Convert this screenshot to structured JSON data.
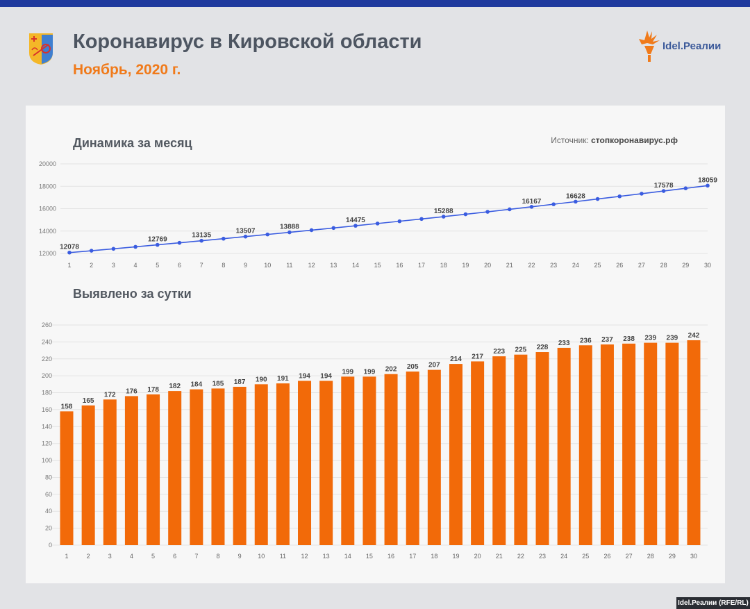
{
  "header": {
    "title": "Коронавирус в Кировской области",
    "subtitle": "Ноябрь, 2020 г.",
    "brand": "Idel.Реалии"
  },
  "source": {
    "label": "Источник:",
    "value": "стопкоронавирус.рф"
  },
  "footer": {
    "credit": "Idel.Реалии (RFE/RL)"
  },
  "colors": {
    "topbar": "#1f3a9e",
    "accent": "#f07a1a",
    "line": "#3a5ce0",
    "bar": "#f26a09",
    "title": "#4d5561"
  },
  "chart_data": [
    {
      "type": "line",
      "title": "Динамика за месяц",
      "x": [
        1,
        2,
        3,
        4,
        5,
        6,
        7,
        8,
        9,
        10,
        11,
        12,
        13,
        14,
        15,
        16,
        17,
        18,
        19,
        20,
        21,
        22,
        23,
        24,
        25,
        26,
        27,
        28,
        29,
        30
      ],
      "values": [
        12078,
        12243,
        12415,
        12591,
        12769,
        12951,
        13135,
        13320,
        13507,
        13697,
        13888,
        14082,
        14276,
        14475,
        14674,
        14876,
        15081,
        15288,
        15502,
        15719,
        15942,
        16167,
        16395,
        16628,
        16864,
        17101,
        17339,
        17578,
        17817,
        18059
      ],
      "labeled_days": [
        1,
        5,
        7,
        9,
        11,
        14,
        18,
        22,
        24,
        28,
        30
      ],
      "ylim": [
        12000,
        20000
      ],
      "yticks": [
        12000,
        14000,
        16000,
        18000,
        20000
      ],
      "grid": true
    },
    {
      "type": "bar",
      "title": "Выявлено за сутки",
      "x": [
        1,
        2,
        3,
        4,
        5,
        6,
        7,
        8,
        9,
        10,
        11,
        12,
        13,
        14,
        15,
        16,
        17,
        18,
        19,
        20,
        21,
        22,
        23,
        24,
        25,
        26,
        27,
        28,
        29,
        30
      ],
      "values": [
        158,
        165,
        172,
        176,
        178,
        182,
        184,
        185,
        187,
        190,
        191,
        194,
        194,
        199,
        199,
        202,
        205,
        207,
        214,
        217,
        223,
        225,
        228,
        233,
        236,
        237,
        238,
        239,
        239,
        242
      ],
      "ylim": [
        0,
        260
      ],
      "yticks": [
        0,
        20,
        40,
        60,
        80,
        100,
        120,
        140,
        160,
        180,
        200,
        220,
        240,
        260
      ],
      "grid": true
    }
  ]
}
